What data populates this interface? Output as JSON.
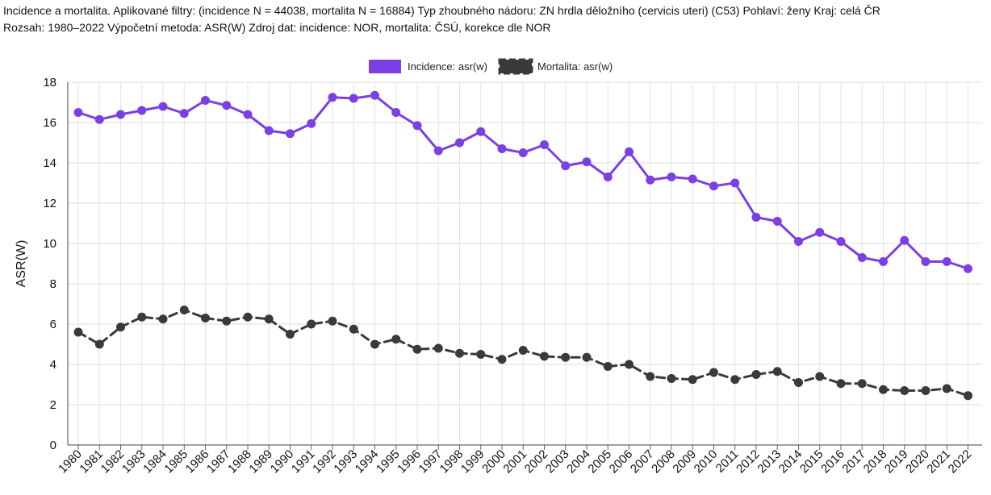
{
  "header": {
    "line1": "Incidence a mortalita. Aplikované filtry: (incidence N = 44038, mortalita N = 16884) Typ zhoubného nádoru: ZN hrdla děložního (cervicis uteri) (C53) Pohlaví: ženy Kraj: celá ČR",
    "line2": "Rozsah: 1980–2022 Výpočetní metoda: ASR(W) Zdroj dat: incidence: NOR, mortalita: ČSÚ, korekce dle NOR"
  },
  "chart_data": {
    "type": "line",
    "title": "",
    "xlabel": "",
    "ylabel": "ASR(W)",
    "ylim": [
      0,
      18
    ],
    "yticks": [
      0,
      2,
      4,
      6,
      8,
      10,
      12,
      14,
      16,
      18
    ],
    "grid": true,
    "legend_position": "top-center",
    "categories": [
      "1980",
      "1981",
      "1982",
      "1983",
      "1984",
      "1985",
      "1986",
      "1987",
      "1988",
      "1989",
      "1990",
      "1991",
      "1992",
      "1993",
      "1994",
      "1995",
      "1996",
      "1997",
      "1998",
      "1999",
      "2000",
      "2001",
      "2002",
      "2003",
      "2004",
      "2005",
      "2006",
      "2007",
      "2008",
      "2009",
      "2010",
      "2011",
      "2012",
      "2013",
      "2014",
      "2015",
      "2016",
      "2017",
      "2018",
      "2019",
      "2020",
      "2021",
      "2022"
    ],
    "series": [
      {
        "name": "Incidence: asr(w)",
        "color": "#7b3fe4",
        "dashed": false,
        "values": [
          16.5,
          16.15,
          16.4,
          16.6,
          16.8,
          16.45,
          17.1,
          16.85,
          16.4,
          15.6,
          15.45,
          15.95,
          17.25,
          17.2,
          17.35,
          16.5,
          15.85,
          14.6,
          15.0,
          15.55,
          14.7,
          14.5,
          14.9,
          13.85,
          14.05,
          13.3,
          14.55,
          13.15,
          13.3,
          13.2,
          12.85,
          13.0,
          11.3,
          11.1,
          10.1,
          10.55,
          10.1,
          9.3,
          9.1,
          10.15,
          9.1,
          9.1,
          8.75
        ]
      },
      {
        "name": "Mortalita: asr(w)",
        "color": "#3a3a3a",
        "dashed": true,
        "values": [
          5.6,
          5.0,
          5.85,
          6.35,
          6.25,
          6.7,
          6.3,
          6.15,
          6.35,
          6.25,
          5.5,
          6.0,
          6.15,
          5.75,
          5.0,
          5.25,
          4.75,
          4.8,
          4.55,
          4.5,
          4.25,
          4.7,
          4.4,
          4.35,
          4.35,
          3.9,
          4.0,
          3.4,
          3.3,
          3.25,
          3.6,
          3.25,
          3.5,
          3.65,
          3.1,
          3.4,
          3.05,
          3.05,
          2.75,
          2.7,
          2.7,
          2.8,
          2.45
        ]
      }
    ]
  }
}
